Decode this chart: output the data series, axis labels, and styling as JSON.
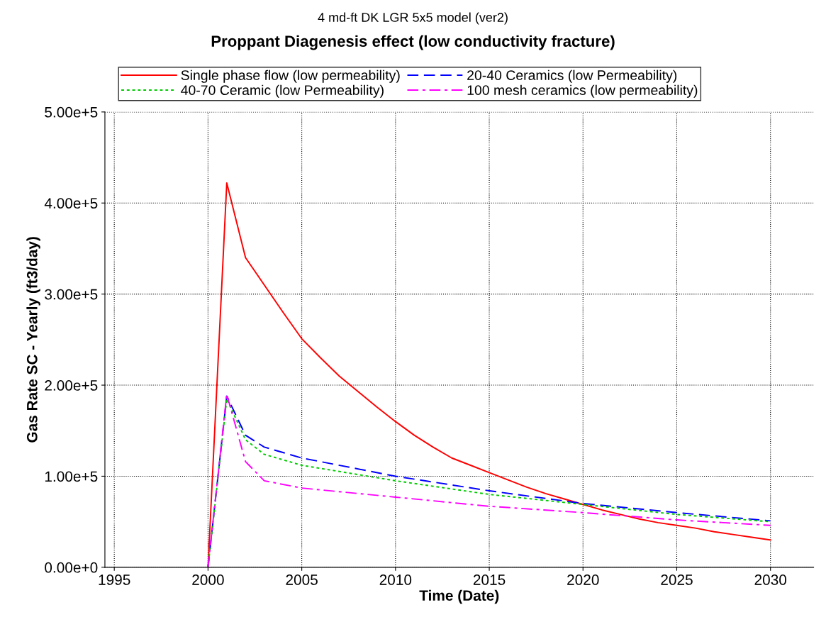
{
  "chart_data": {
    "type": "line",
    "subtitle": "4 md-ft DK LGR 5x5 model (ver2)",
    "title": "Proppant Diagenesis effect (low conductivity fracture)",
    "xlabel": "Time (Date)",
    "ylabel": "Gas Rate SC - Yearly (ft3/day)",
    "xlim": [
      1994.5,
      2032.3
    ],
    "xticks": [
      1995,
      2000,
      2005,
      2010,
      2015,
      2020,
      2025,
      2030
    ],
    "ylim": [
      0,
      500000
    ],
    "yticks": [
      {
        "value": 0,
        "label": "0.00e+0"
      },
      {
        "value": 100000,
        "label": "1.00e+5"
      },
      {
        "value": 200000,
        "label": "2.00e+5"
      },
      {
        "value": 300000,
        "label": "3.00e+5"
      },
      {
        "value": 400000,
        "label": "4.00e+5"
      },
      {
        "value": 500000,
        "label": "5.00e+5"
      }
    ],
    "grid": true,
    "legend": "top",
    "marker": "none",
    "series": [
      {
        "name": "Single phase flow (low permeability)",
        "color": "#ff0000",
        "line_style": "solid",
        "x": [
          2000,
          2001,
          2002,
          2003,
          2004,
          2005,
          2006,
          2007,
          2008,
          2009,
          2010,
          2011,
          2012,
          2013,
          2014,
          2015,
          2016,
          2017,
          2018,
          2019,
          2020,
          2021,
          2022,
          2023,
          2024,
          2025,
          2026,
          2027,
          2028,
          2029,
          2030
        ],
        "values": [
          0,
          422000,
          340000,
          310000,
          280000,
          251000,
          230000,
          210000,
          193000,
          176000,
          160000,
          145000,
          132000,
          120000,
          112000,
          104000,
          96000,
          88000,
          81000,
          75000,
          69000,
          63000,
          58000,
          53000,
          49000,
          46000,
          43000,
          39000,
          36000,
          33000,
          30000
        ]
      },
      {
        "name": "20-40 Ceramics (low Permeability)",
        "color": "#0000ff",
        "line_style": "dashed",
        "x": [
          2000,
          2001,
          2002,
          2003,
          2005,
          2010,
          2015,
          2020,
          2025,
          2030
        ],
        "values": [
          0,
          188000,
          145000,
          132000,
          120000,
          100000,
          84000,
          70000,
          60000,
          51000
        ]
      },
      {
        "name": "40-70 Ceramic (low Permeability)",
        "color": "#00cc00",
        "line_style": "dotted",
        "x": [
          2000,
          2001,
          2002,
          2003,
          2005,
          2010,
          2015,
          2020,
          2025,
          2030
        ],
        "values": [
          0,
          185000,
          140000,
          124000,
          112000,
          95000,
          80000,
          69000,
          58000,
          50000
        ]
      },
      {
        "name": "100 mesh ceramics (low permeability)",
        "color": "#ff00ff",
        "line_style": "dashdot",
        "x": [
          2000,
          2001,
          2002,
          2003,
          2005,
          2010,
          2015,
          2020,
          2025,
          2030
        ],
        "values": [
          0,
          190000,
          116000,
          95000,
          87000,
          77000,
          67000,
          60000,
          52000,
          46000
        ]
      }
    ]
  }
}
